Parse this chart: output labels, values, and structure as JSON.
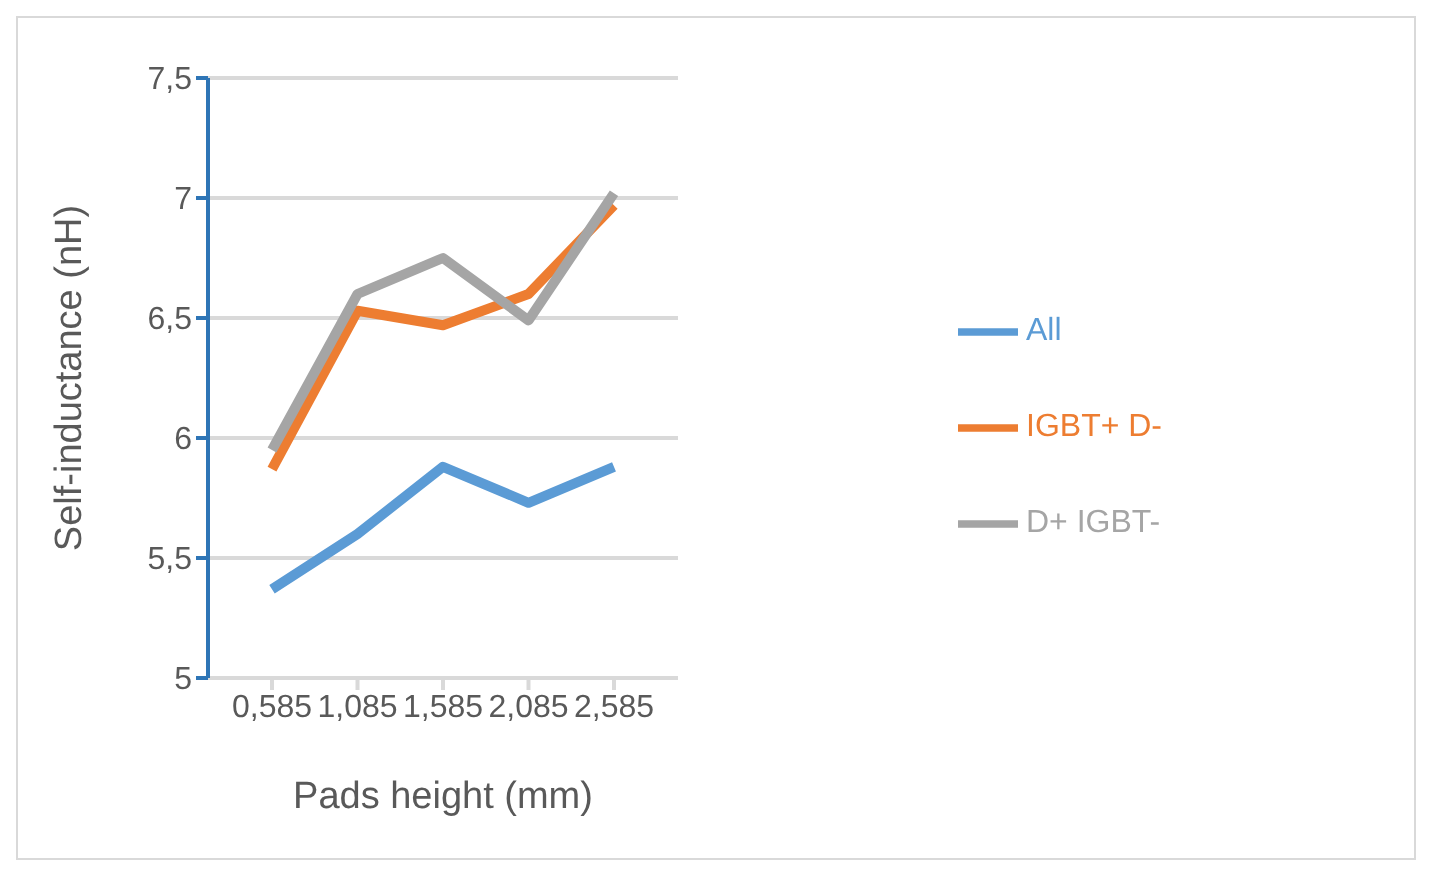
{
  "chart_data": {
    "type": "line",
    "xlabel": "Pads height (mm)",
    "ylabel": "Self-inductance (nH)",
    "categories": [
      "0,585",
      "1,085",
      "1,585",
      "2,085",
      "2,585"
    ],
    "series": [
      {
        "name": "All",
        "color": "#5b9bd5",
        "values": [
          5.37,
          5.6,
          5.88,
          5.73,
          5.88
        ]
      },
      {
        "name": "IGBT+ D-",
        "color": "#ed7d31",
        "values": [
          5.87,
          6.53,
          6.47,
          6.6,
          6.97
        ]
      },
      {
        "name": "D+ IGBT-",
        "color": "#a5a5a5",
        "values": [
          5.95,
          6.6,
          6.75,
          6.49,
          7.02
        ]
      }
    ],
    "ylim": [
      5,
      7.5
    ],
    "yticks": [
      5,
      {
        "value": 5.5,
        "label": "5,5"
      },
      6,
      {
        "value": 6.5,
        "label": "6,5"
      },
      7,
      {
        "value": 7.5,
        "label": "7,5"
      }
    ],
    "grid": "y",
    "legend": "right",
    "marker": "none",
    "line_style": "solid"
  }
}
